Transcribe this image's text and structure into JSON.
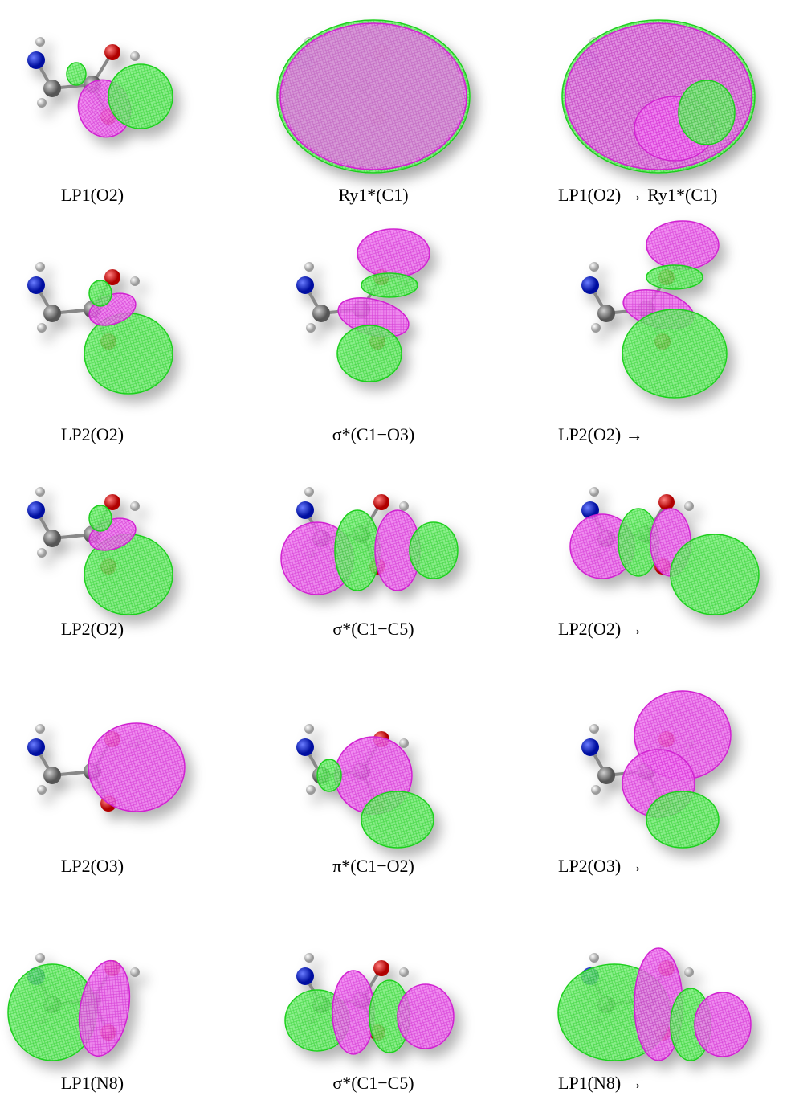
{
  "panels": [
    [
      "LP1(O2)",
      "Ry1*(C1)",
      "LP1(O2) → Ry1*(C1)"
    ],
    [
      "LP2(O2)",
      "σ*(C1−O3)",
      "LP2(O2) →"
    ],
    [
      "LP2(O2)",
      "σ*(C1−C5)",
      "LP2(O2) →"
    ],
    [
      "LP2(O3)",
      "π*(C1−O2)",
      "LP2(O3) →"
    ],
    [
      "LP1(N8)",
      "σ*(C1−C5)",
      "LP1(N8) →"
    ]
  ]
}
